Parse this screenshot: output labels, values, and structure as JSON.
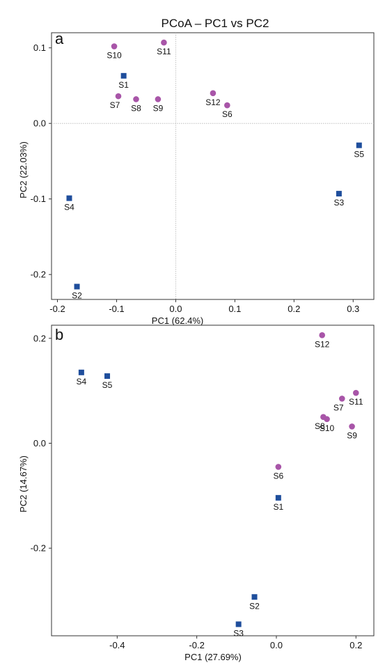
{
  "figure": {
    "title": "PCoA – PC1 vs PC2"
  },
  "colors": {
    "square": "#1f4e9c",
    "circle": "#a855a8",
    "zero_line": "#b5b5b5",
    "frame": "#333333"
  },
  "chart_data": [
    {
      "type": "scatter",
      "panel": "a",
      "xlabel": "PC1 (62.4%)",
      "ylabel": "PC2 (22.03%)",
      "xlim": [
        -0.21,
        0.335
      ],
      "ylim": [
        -0.233,
        0.12
      ],
      "xticks": [
        {
          "v": -0.2,
          "label": "-0.2"
        },
        {
          "v": -0.1,
          "label": "-0.1"
        },
        {
          "v": 0.0,
          "label": "0.0"
        },
        {
          "v": 0.1,
          "label": "0.1"
        },
        {
          "v": 0.2,
          "label": "0.2"
        },
        {
          "v": 0.3,
          "label": "0.3"
        }
      ],
      "yticks": [
        {
          "v": 0.1,
          "label": "0.1"
        },
        {
          "v": 0.0,
          "label": "0.0"
        },
        {
          "v": -0.1,
          "label": "-0.1"
        },
        {
          "v": -0.2,
          "label": "-0.2"
        }
      ],
      "zero_lines": true,
      "points": [
        {
          "label": "S1",
          "x": -0.088,
          "y": 0.063,
          "marker": "square",
          "lpos": "below"
        },
        {
          "label": "S2",
          "x": -0.167,
          "y": -0.216,
          "marker": "square",
          "lpos": "below"
        },
        {
          "label": "S3",
          "x": 0.276,
          "y": -0.093,
          "marker": "square",
          "lpos": "below"
        },
        {
          "label": "S4",
          "x": -0.18,
          "y": -0.099,
          "marker": "square",
          "lpos": "below"
        },
        {
          "label": "S5",
          "x": 0.31,
          "y": -0.029,
          "marker": "square",
          "lpos": "below"
        },
        {
          "label": "S6",
          "x": 0.087,
          "y": 0.024,
          "marker": "circle",
          "lpos": "below"
        },
        {
          "label": "S7",
          "x": -0.097,
          "y": 0.036,
          "marker": "circle",
          "lpos": "below-left"
        },
        {
          "label": "S8",
          "x": -0.067,
          "y": 0.032,
          "marker": "circle",
          "lpos": "below"
        },
        {
          "label": "S9",
          "x": -0.03,
          "y": 0.032,
          "marker": "circle",
          "lpos": "below"
        },
        {
          "label": "S10",
          "x": -0.104,
          "y": 0.102,
          "marker": "circle",
          "lpos": "below"
        },
        {
          "label": "S11",
          "x": -0.02,
          "y": 0.107,
          "marker": "circle",
          "lpos": "below"
        },
        {
          "label": "S12",
          "x": 0.063,
          "y": 0.04,
          "marker": "circle",
          "lpos": "below"
        }
      ]
    },
    {
      "type": "scatter",
      "panel": "b",
      "xlabel": "PC1 (27.69%)",
      "ylabel": "PC2 (14.67%)",
      "xlim": [
        -0.565,
        0.245
      ],
      "ylim": [
        -0.367,
        0.225
      ],
      "xticks": [
        {
          "v": -0.4,
          "label": "-0.4"
        },
        {
          "v": -0.2,
          "label": "-0.2"
        },
        {
          "v": 0.0,
          "label": "0.0"
        },
        {
          "v": 0.2,
          "label": "0.2"
        }
      ],
      "yticks": [
        {
          "v": 0.2,
          "label": "0.2"
        },
        {
          "v": 0.0,
          "label": "0.0"
        },
        {
          "v": -0.2,
          "label": "-0.2"
        }
      ],
      "zero_lines": false,
      "points": [
        {
          "label": "S1",
          "x": 0.005,
          "y": -0.104,
          "marker": "square",
          "lpos": "below"
        },
        {
          "label": "S2",
          "x": -0.055,
          "y": -0.293,
          "marker": "square",
          "lpos": "below"
        },
        {
          "label": "S3",
          "x": -0.095,
          "y": -0.345,
          "marker": "square",
          "lpos": "below"
        },
        {
          "label": "S4",
          "x": -0.49,
          "y": 0.135,
          "marker": "square",
          "lpos": "below"
        },
        {
          "label": "S5",
          "x": -0.425,
          "y": 0.128,
          "marker": "square",
          "lpos": "below"
        },
        {
          "label": "S6",
          "x": 0.005,
          "y": -0.045,
          "marker": "circle",
          "lpos": "below"
        },
        {
          "label": "S7",
          "x": 0.165,
          "y": 0.085,
          "marker": "circle",
          "lpos": "below-left"
        },
        {
          "label": "S8",
          "x": 0.118,
          "y": 0.05,
          "marker": "circle",
          "lpos": "below-left"
        },
        {
          "label": "S9",
          "x": 0.19,
          "y": 0.032,
          "marker": "circle",
          "lpos": "below"
        },
        {
          "label": "S10",
          "x": 0.127,
          "y": 0.046,
          "marker": "circle",
          "lpos": "below"
        },
        {
          "label": "S11",
          "x": 0.2,
          "y": 0.096,
          "marker": "circle",
          "lpos": "below"
        },
        {
          "label": "S12",
          "x": 0.115,
          "y": 0.206,
          "marker": "circle",
          "lpos": "below"
        }
      ]
    }
  ]
}
